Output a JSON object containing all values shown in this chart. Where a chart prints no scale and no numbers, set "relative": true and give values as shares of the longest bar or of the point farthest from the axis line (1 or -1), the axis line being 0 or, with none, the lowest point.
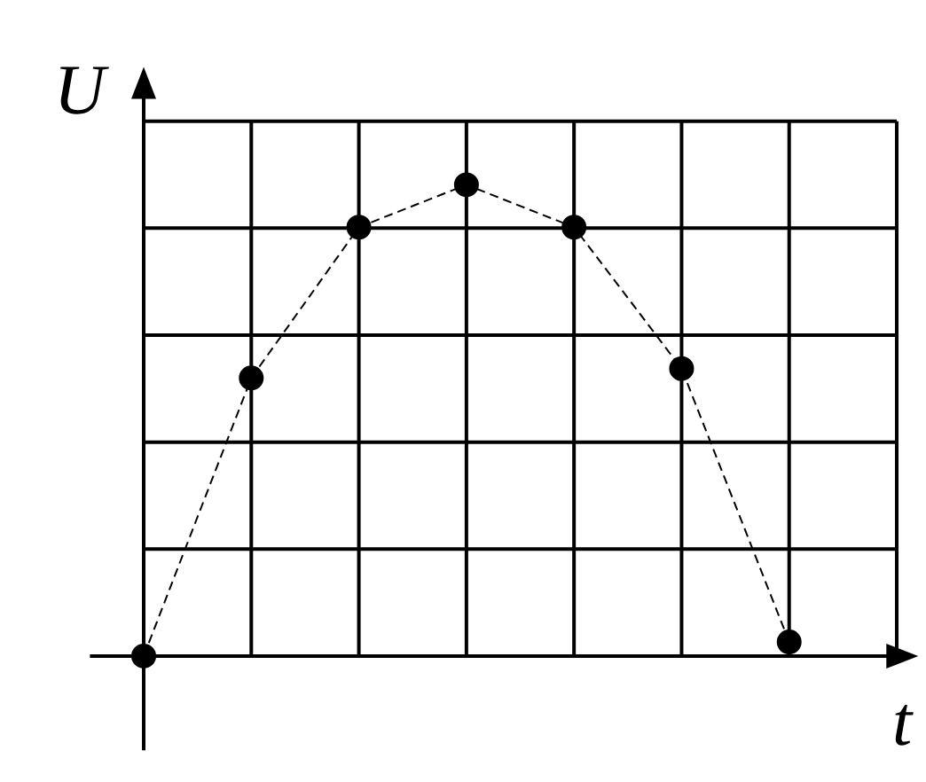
{
  "chart_data": {
    "type": "line",
    "xlabel": "t",
    "ylabel": "U",
    "categories": [
      null,
      null,
      null,
      null,
      null,
      null,
      null
    ],
    "relative": true,
    "grid": true,
    "marker": "circle",
    "line_style": "dashed",
    "series": [
      {
        "color": "#000000",
        "values": [
          0,
          0.59,
          0.91,
          1,
          0.91,
          0.61,
          0.03
        ]
      }
    ]
  }
}
